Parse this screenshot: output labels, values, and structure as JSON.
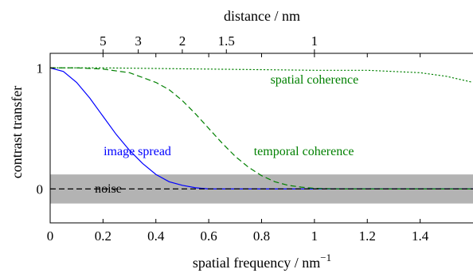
{
  "chart_data": {
    "type": "line",
    "xlabel": "spatial frequency / nm",
    "xlabel_superscript": "−1",
    "ylabel": "contrast transfer",
    "top_axis_label": "distance / nm",
    "xlim": [
      0,
      1.6
    ],
    "ylim": [
      -0.28,
      1.12
    ],
    "x_ticks": [
      {
        "value": 0,
        "label": "0"
      },
      {
        "value": 0.2,
        "label": "0.2"
      },
      {
        "value": 0.4,
        "label": "0.4"
      },
      {
        "value": 0.6,
        "label": "0.6"
      },
      {
        "value": 0.8,
        "label": "0.8"
      },
      {
        "value": 1.0,
        "label": "1"
      },
      {
        "value": 1.2,
        "label": "1.2"
      },
      {
        "value": 1.4,
        "label": "1.4"
      }
    ],
    "y_ticks": [
      {
        "value": 0,
        "label": "0"
      },
      {
        "value": 1,
        "label": "1"
      }
    ],
    "top_ticks": [
      {
        "distance": 5,
        "label": "5"
      },
      {
        "distance": 3,
        "label": "3"
      },
      {
        "distance": 2,
        "label": "2"
      },
      {
        "distance": 1.5,
        "label": "1.5"
      },
      {
        "distance": 1,
        "label": "1"
      }
    ],
    "noise_band": {
      "label": "noise",
      "ymin": -0.12,
      "ymax": 0.12,
      "color": "#b3b3b3"
    },
    "series": [
      {
        "name": "image spread",
        "color": "#0000ff",
        "style": "solid",
        "x": [
          0,
          0.05,
          0.1,
          0.15,
          0.2,
          0.25,
          0.3,
          0.35,
          0.4,
          0.45,
          0.5,
          0.55,
          0.6,
          0.7,
          0.8,
          1.0,
          1.2,
          1.4,
          1.6
        ],
        "y": [
          1.0,
          0.97,
          0.88,
          0.75,
          0.6,
          0.45,
          0.32,
          0.21,
          0.12,
          0.06,
          0.03,
          0.01,
          0.0,
          0.0,
          0.0,
          0.0,
          0.0,
          0.0,
          0.0
        ]
      },
      {
        "name": "temporal coherence",
        "color": "#008000",
        "style": "dashed",
        "x": [
          0,
          0.1,
          0.2,
          0.3,
          0.4,
          0.45,
          0.5,
          0.55,
          0.6,
          0.65,
          0.7,
          0.75,
          0.8,
          0.85,
          0.9,
          0.95,
          1.0,
          1.1,
          1.2,
          1.4,
          1.6
        ],
        "y": [
          1.0,
          1.0,
          0.99,
          0.96,
          0.88,
          0.82,
          0.73,
          0.62,
          0.5,
          0.38,
          0.27,
          0.18,
          0.11,
          0.06,
          0.03,
          0.015,
          0.005,
          0.0,
          0.0,
          0.0,
          0.0
        ]
      },
      {
        "name": "spatial coherence",
        "color": "#008000",
        "style": "dotted",
        "x": [
          0,
          0.2,
          0.4,
          0.6,
          0.8,
          1.0,
          1.1,
          1.2,
          1.3,
          1.4,
          1.5,
          1.6
        ],
        "y": [
          1.0,
          1.0,
          0.995,
          0.99,
          0.985,
          0.98,
          0.98,
          0.98,
          0.97,
          0.96,
          0.93,
          0.88
        ]
      },
      {
        "name": "noise",
        "color": "#000000",
        "style": "dashed",
        "x": [
          0,
          1.6
        ],
        "y": [
          0,
          0
        ]
      }
    ],
    "annotations": [
      {
        "text": "spatial coherence",
        "color": "#008000",
        "x": 1.0,
        "y": 0.87
      },
      {
        "text": "temporal coherence",
        "color": "#008000",
        "x": 0.96,
        "y": 0.28
      },
      {
        "text": "image spread",
        "color": "#0000ff",
        "x": 0.33,
        "y": 0.28
      },
      {
        "text": "noise",
        "color": "#000000",
        "x": 0.22,
        "y": -0.03
      }
    ],
    "grid": false,
    "legend": "none"
  }
}
